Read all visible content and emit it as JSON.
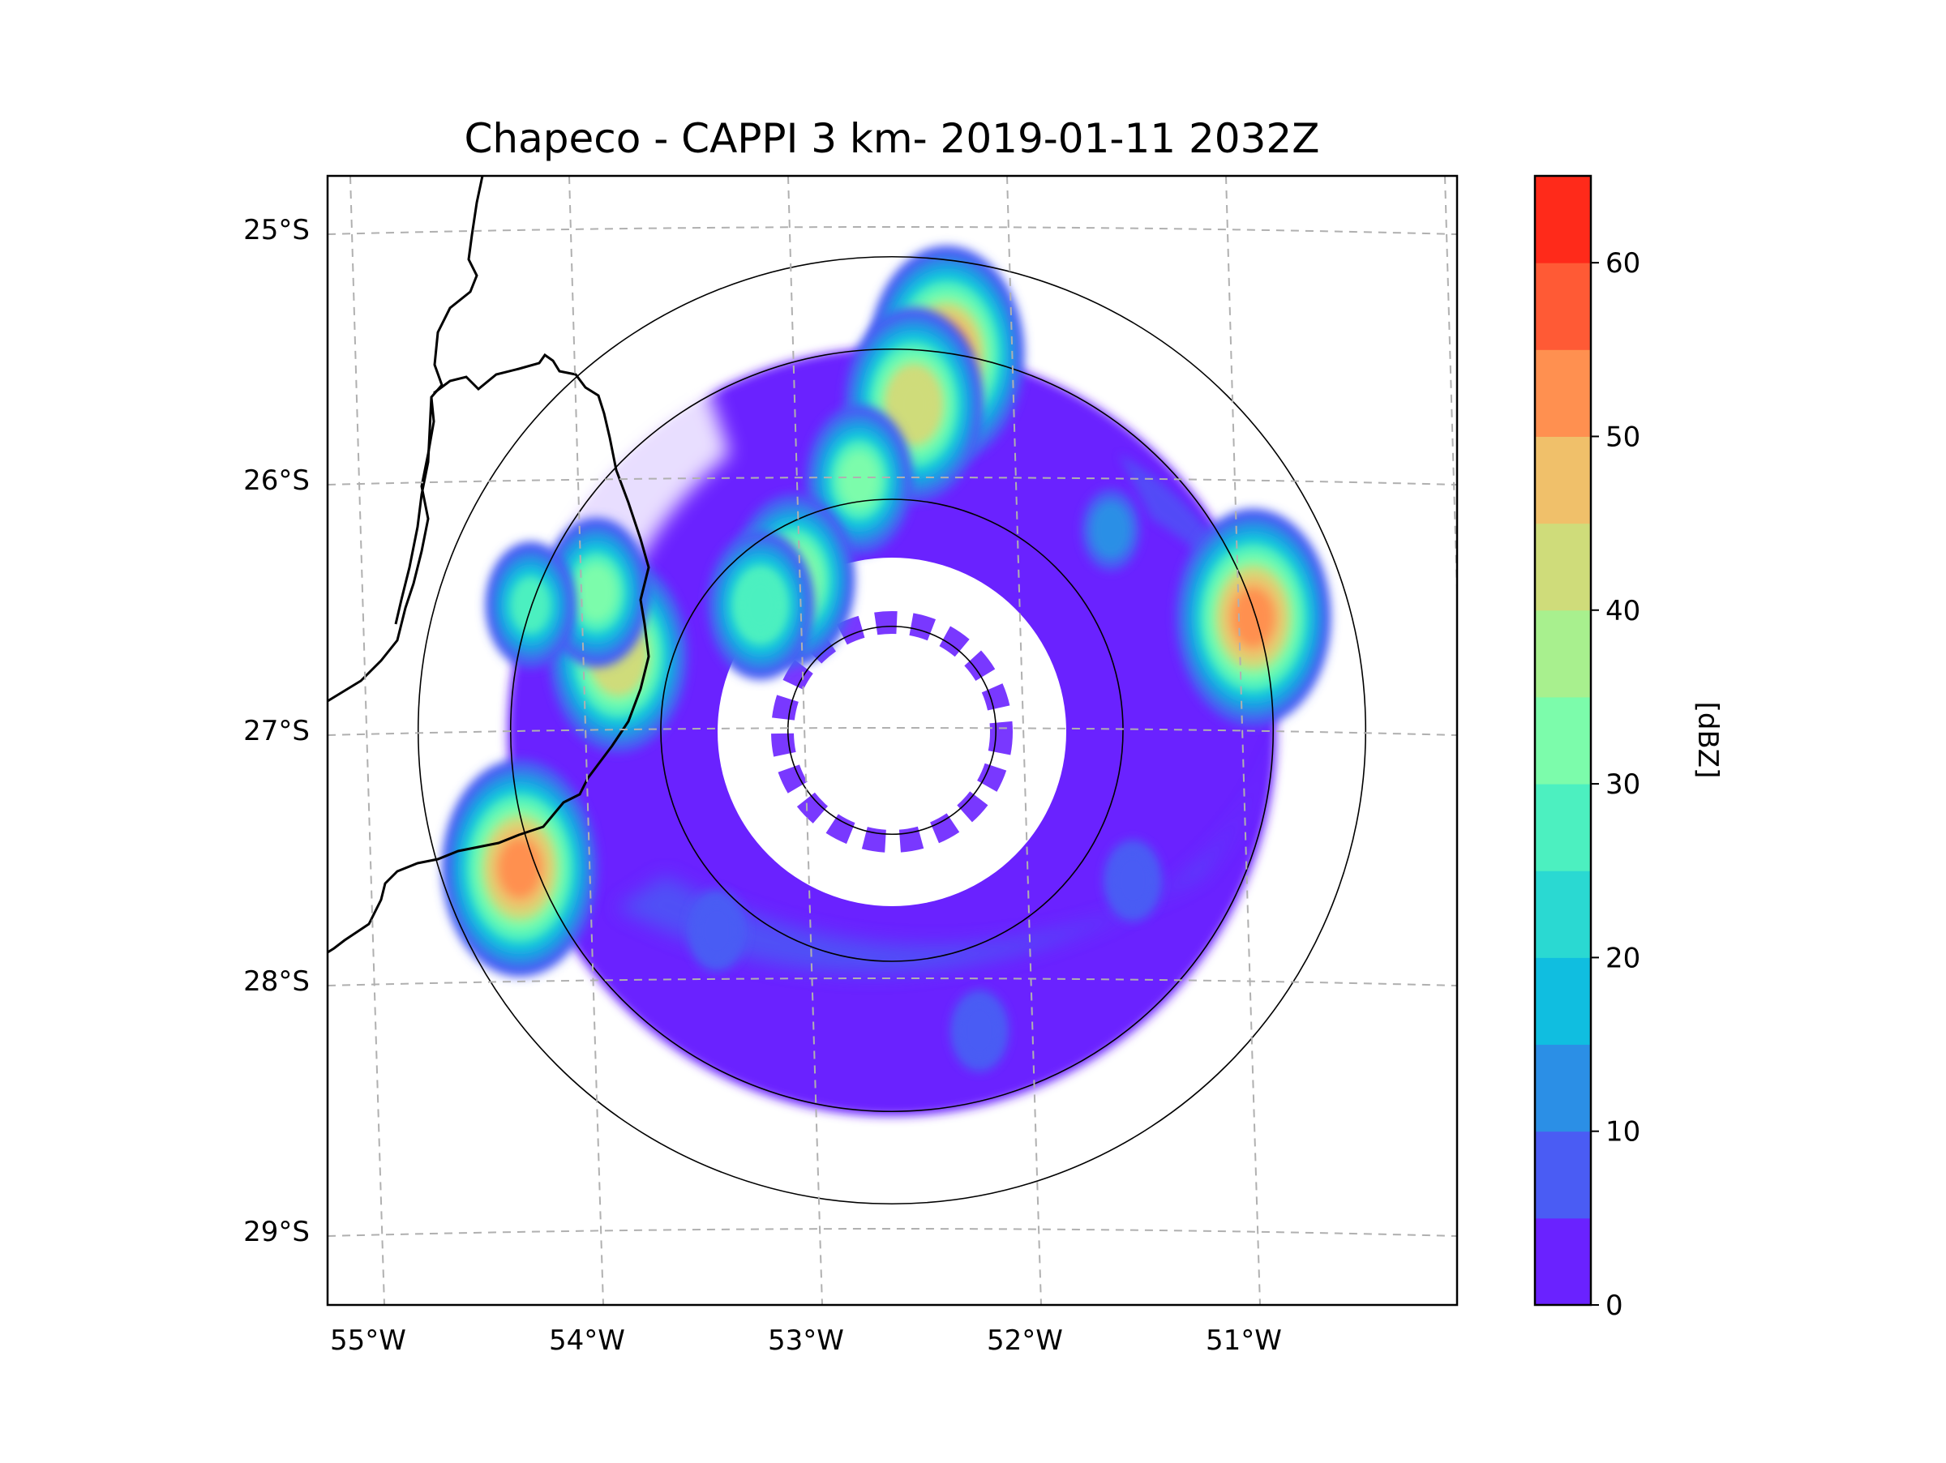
{
  "chart_data": {
    "type": "heatmap",
    "title": "Chapeco - CAPPI 3 km- 2019-01-11 2032Z",
    "x_ticks": [
      "55°W",
      "54°W",
      "53°W",
      "52°W",
      "51°W"
    ],
    "y_ticks": [
      "25°S",
      "26°S",
      "27°S",
      "28°S",
      "29°S"
    ],
    "colorbar": {
      "label": "[dBZ]",
      "ticks": [
        0,
        10,
        20,
        30,
        40,
        50,
        60
      ],
      "range": [
        0,
        65
      ],
      "bins": [
        {
          "from": 0,
          "to": 5,
          "color": "#6a22ff"
        },
        {
          "from": 5,
          "to": 10,
          "color": "#4a5cf4"
        },
        {
          "from": 10,
          "to": 15,
          "color": "#2b8fe6"
        },
        {
          "from": 15,
          "to": 20,
          "color": "#10bee0"
        },
        {
          "from": 20,
          "to": 25,
          "color": "#2ad9d2"
        },
        {
          "from": 25,
          "to": 30,
          "color": "#4cf0c0"
        },
        {
          "from": 30,
          "to": 35,
          "color": "#7cfcab"
        },
        {
          "from": 35,
          "to": 40,
          "color": "#a8f08e"
        },
        {
          "from": 40,
          "to": 45,
          "color": "#cfdc7a"
        },
        {
          "from": 45,
          "to": 50,
          "color": "#f0c06a"
        },
        {
          "from": 50,
          "to": 55,
          "color": "#ff9050"
        },
        {
          "from": 55,
          "to": 60,
          "color": "#ff5a35"
        },
        {
          "from": 60,
          "to": 65,
          "color": "#ff2a1a"
        }
      ]
    },
    "radar_center": {
      "lon": -52.6,
      "lat": -27.0
    },
    "range_rings_deg": [
      0.45,
      1.0,
      1.65,
      2.05
    ],
    "echo_cells": [
      {
        "lon": -52.35,
        "lat": -25.5,
        "dbz": 52
      },
      {
        "lon": -52.5,
        "lat": -25.7,
        "dbz": 42
      },
      {
        "lon": -52.75,
        "lat": -26.0,
        "dbz": 30
      },
      {
        "lon": -53.05,
        "lat": -26.4,
        "dbz": 34
      },
      {
        "lon": -53.2,
        "lat": -26.5,
        "dbz": 28
      },
      {
        "lon": -53.85,
        "lat": -26.7,
        "dbz": 44
      },
      {
        "lon": -53.95,
        "lat": -26.45,
        "dbz": 30
      },
      {
        "lon": -54.25,
        "lat": -26.5,
        "dbz": 26
      },
      {
        "lon": -54.3,
        "lat": -27.55,
        "dbz": 52
      },
      {
        "lon": -50.95,
        "lat": -26.55,
        "dbz": 50
      },
      {
        "lon": -51.6,
        "lat": -26.2,
        "dbz": 12
      },
      {
        "lon": -51.5,
        "lat": -27.6,
        "dbz": 8
      },
      {
        "lon": -52.2,
        "lat": -28.2,
        "dbz": 6
      },
      {
        "lon": -53.4,
        "lat": -27.8,
        "dbz": 7
      }
    ]
  }
}
